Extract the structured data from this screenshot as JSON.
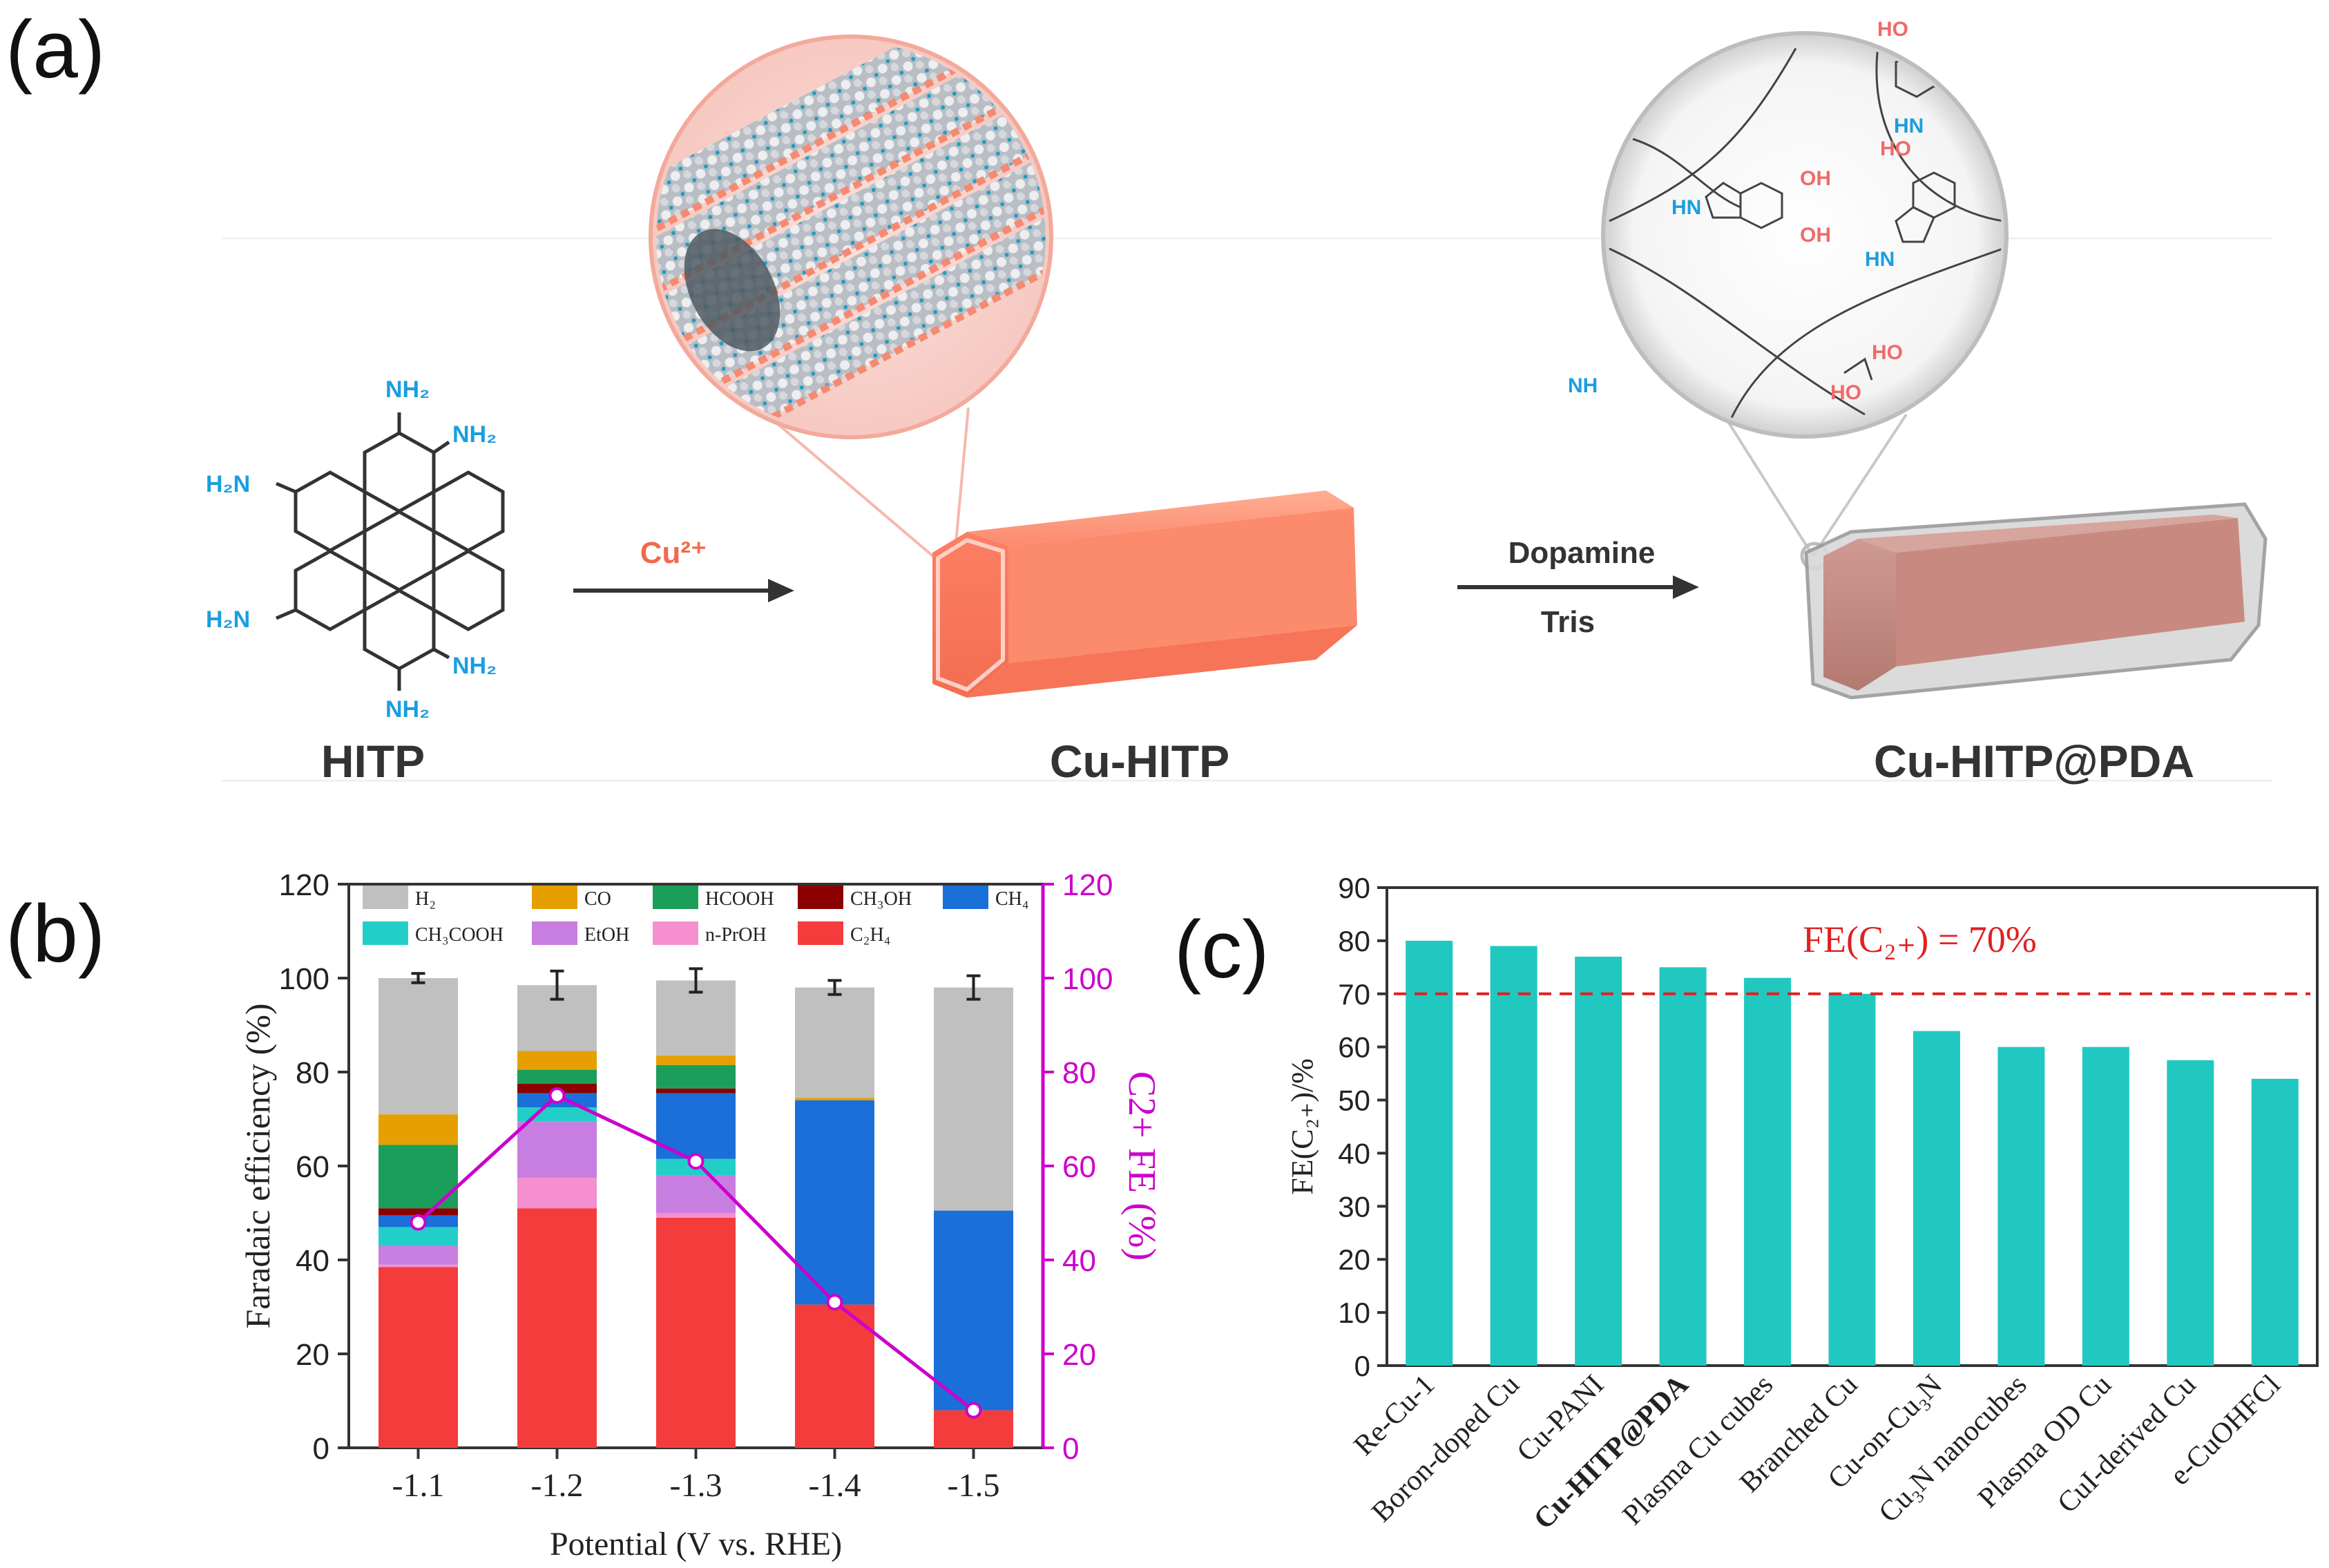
{
  "panel_a": {
    "label": "(a)",
    "hitp_name": "HITP",
    "cu_hitp_name": "Cu-HITP",
    "cu_hitp_pda_name": "Cu-HITP@PDA",
    "reagent1": "Cu²⁺",
    "reagent2a": "Dopamine",
    "reagent2b": "Tris",
    "nh2": "NH₂",
    "h2n": "H₂N",
    "hn": "HN",
    "nh": "NH",
    "oh": "OH",
    "ho": "HO"
  },
  "panel_b": {
    "label": "(b)"
  },
  "panel_c": {
    "label": "(c)"
  },
  "colors": {
    "H2": "#c0c0c0",
    "CO": "#e69f00",
    "HCOOH": "#1a9e5a",
    "CH3OH": "#8b0000",
    "CH4": "#1a6fd8",
    "CH3COOH": "#22cfc8",
    "EtOH": "#c77ee0",
    "nPrOH": "#f58fd0",
    "C2H4": "#f43c3c",
    "C2_line": "#cc00cc",
    "bar_c": "#20c8c0",
    "ref_line": "#e02020"
  },
  "chart_data": [
    {
      "type": "bar",
      "stacked": true,
      "categories": [
        "-1.1",
        "-1.2",
        "-1.3",
        "-1.4",
        "-1.5"
      ],
      "xlabel": "Potential (V vs. RHE)",
      "ylabel": "Faradaic efficiency (%)",
      "y2label": "C2+ FE (%)",
      "ylim": [
        0,
        120
      ],
      "yticks": [
        "0",
        "20",
        "40",
        "60",
        "80",
        "100",
        "120"
      ],
      "legend": [
        "H₂",
        "CO",
        "HCOOH",
        "CH₃OH",
        "CH₄",
        "CH₃COOH",
        "EtOH",
        "n-PrOH",
        "C₂H₄"
      ],
      "series": [
        {
          "name": "C2H4",
          "values": [
            38.5,
            51,
            49,
            30.5,
            8
          ]
        },
        {
          "name": "nPrOH",
          "values": [
            0.5,
            6.5,
            1,
            0,
            0
          ]
        },
        {
          "name": "EtOH",
          "values": [
            4,
            12,
            8,
            0,
            0
          ]
        },
        {
          "name": "CH3COOH",
          "values": [
            4,
            3,
            3.5,
            0,
            0
          ]
        },
        {
          "name": "CH4",
          "values": [
            2.5,
            3,
            14,
            43.5,
            42.5
          ]
        },
        {
          "name": "CH3OH",
          "values": [
            1.5,
            2,
            1,
            0,
            0
          ]
        },
        {
          "name": "HCOOH",
          "values": [
            13.5,
            3,
            5,
            0,
            0
          ]
        },
        {
          "name": "CO",
          "values": [
            6.5,
            4,
            2,
            0.5,
            0
          ]
        },
        {
          "name": "H2",
          "values": [
            29,
            14,
            16,
            23.5,
            47.5
          ]
        }
      ],
      "c2_fe": [
        48,
        75,
        61,
        31,
        8
      ],
      "total_error": [
        1,
        3,
        2.5,
        1.5,
        2.5
      ]
    },
    {
      "type": "bar",
      "categories": [
        "Re-Cu-1",
        "Boron-doped Cu",
        "Cu-PANI",
        "Cu-HITP@PDA",
        "Plasma Cu cubes",
        "Branched Cu",
        "Cu-on-Cu₃N",
        "Cu₃N nanocubes",
        "Plasma OD Cu",
        "CuI-derived Cu",
        "e-CuOHFCl"
      ],
      "values": [
        80,
        79,
        77,
        75,
        73,
        70,
        63,
        60,
        60,
        57.5,
        54
      ],
      "ylabel": "FE(C₂₊)/%",
      "ylim": [
        0,
        90
      ],
      "yticks": [
        "0",
        "10",
        "20",
        "30",
        "40",
        "50",
        "60",
        "70",
        "80",
        "90"
      ],
      "reference_value": 70,
      "reference_label": "FE(C₂₊) = 70%",
      "highlight": "Cu-HITP@PDA"
    }
  ]
}
